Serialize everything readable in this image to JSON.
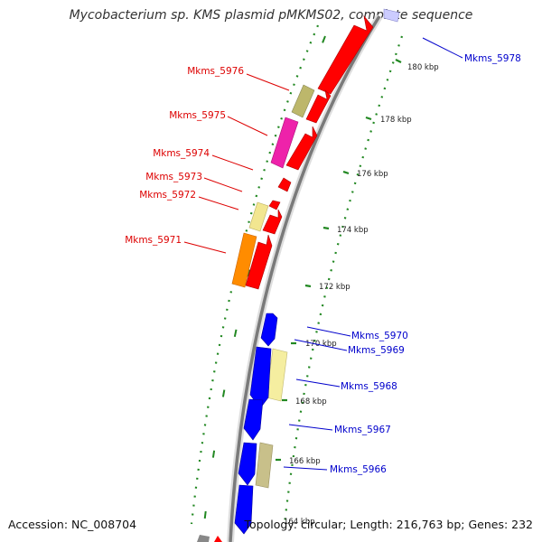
{
  "title": "Mycobacterium sp. KMS plasmid pMKMS02, complete sequence",
  "accession": "Accession: NC_008704",
  "topology": "Topology: circular; Length: 216,763 bp; Genes: 232",
  "scale_labels": [
    {
      "text": "180 kbp"
    },
    {
      "text": "178 kbp"
    },
    {
      "text": "176 kbp"
    },
    {
      "text": "174 kbp"
    },
    {
      "text": "172 kbp"
    },
    {
      "text": "170 kbp"
    },
    {
      "text": "168 kbp"
    },
    {
      "text": "166 kbp"
    },
    {
      "text": "164 kbp"
    }
  ],
  "gene_labels": [
    {
      "text": "Mkms_5976",
      "color": "#dd0000"
    },
    {
      "text": "Mkms_5975",
      "color": "#dd0000"
    },
    {
      "text": "Mkms_5974",
      "color": "#dd0000"
    },
    {
      "text": "Mkms_5973",
      "color": "#dd0000"
    },
    {
      "text": "Mkms_5972",
      "color": "#dd0000"
    },
    {
      "text": "Mkms_5971",
      "color": "#dd0000"
    },
    {
      "text": "Mkms_5978",
      "color": "#0000cc"
    },
    {
      "text": "Mkms_5970",
      "color": "#0000cc"
    },
    {
      "text": "Mkms_5969",
      "color": "#0000cc"
    },
    {
      "text": "Mkms_5968",
      "color": "#0000cc"
    },
    {
      "text": "Mkms_5967",
      "color": "#0000cc"
    },
    {
      "text": "Mkms_5966",
      "color": "#0000cc"
    }
  ],
  "colors": {
    "forward_cds": "#ff0000",
    "reverse_cds": "#0000ff",
    "backbone": "#888888",
    "gc_dots": "#228822",
    "label_red": "#dd0000",
    "label_blue": "#0000cc"
  }
}
